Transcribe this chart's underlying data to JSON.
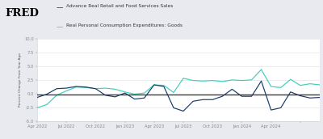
{
  "legend1": "Advance Real Retail and Food Services Sales",
  "legend2": "Real Personal Consumption Expenditures: Goods",
  "ylabel": "Percent Change From Year Ago",
  "ylim": [
    -5.0,
    10.0
  ],
  "yticks": [
    -5.0,
    -2.5,
    0.0,
    2.5,
    5.0,
    7.5,
    10.0
  ],
  "background_color": "#e8eaf0",
  "plot_bg_color": "#ffffff",
  "header_bg_color": "#dce0e8",
  "line1_color": "#1a3a6b",
  "line2_color": "#3ecfbc",
  "hline_color": "#333333",
  "series1_x": [
    0,
    1,
    2,
    3,
    4,
    5,
    6,
    7,
    8,
    9,
    10,
    11,
    12,
    13,
    14,
    15,
    16,
    17,
    18,
    19,
    20,
    21,
    22,
    23,
    24,
    25,
    26,
    27,
    28,
    29
  ],
  "series1_y": [
    -0.7,
    -0.1,
    0.9,
    1.0,
    1.3,
    1.2,
    0.9,
    -0.3,
    -0.6,
    0.1,
    -1.0,
    -0.8,
    1.6,
    1.3,
    -2.6,
    -3.2,
    -1.4,
    -1.1,
    -1.1,
    -0.5,
    0.8,
    -0.5,
    -0.5,
    2.3,
    -3.0,
    -2.6,
    0.3,
    -0.4,
    -0.8,
    -0.7
  ],
  "series2_x": [
    0,
    1,
    2,
    3,
    4,
    5,
    6,
    7,
    8,
    9,
    10,
    11,
    12,
    13,
    14,
    15,
    16,
    17,
    18,
    19,
    20,
    21,
    22,
    23,
    24,
    25,
    26,
    27,
    28,
    29
  ],
  "series2_y": [
    -2.6,
    -2.0,
    -0.3,
    0.5,
    1.2,
    1.1,
    0.9,
    1.0,
    0.8,
    0.3,
    -0.1,
    0.1,
    1.6,
    1.5,
    0.2,
    2.8,
    2.4,
    2.3,
    2.4,
    2.2,
    2.5,
    2.4,
    2.5,
    4.4,
    1.3,
    1.1,
    2.6,
    1.5,
    1.8,
    1.6
  ],
  "x_tick_positions": [
    0,
    3,
    6,
    9,
    12,
    15,
    18,
    21,
    24,
    27
  ],
  "x_tick_labels": [
    "Apr 2022",
    "Jul 2022",
    "Oct 2022",
    "Jan 2023",
    "Apr 2023",
    "Jul 2023",
    "Oct 2023",
    "Jan 2024",
    "Apr 2024",
    ""
  ],
  "hline_y": -0.2
}
